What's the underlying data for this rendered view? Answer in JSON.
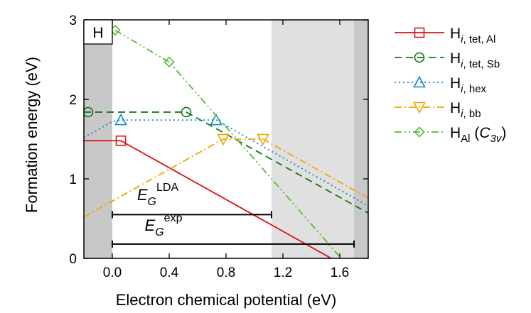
{
  "chart_data": {
    "type": "line",
    "xlabel": "Electron chemical potential (eV)",
    "ylabel": "Formation energy (eV)",
    "xlim": [
      -0.2,
      1.8
    ],
    "ylim": [
      0,
      3
    ],
    "xticks": [
      "0.0",
      "0.4",
      "0.8",
      "1.2",
      "1.6"
    ],
    "xtick_values": [
      0.0,
      0.4,
      0.8,
      1.2,
      1.6
    ],
    "yticks": [
      "0",
      "1",
      "2",
      "3"
    ],
    "ytick_values": [
      0,
      1,
      2,
      3
    ],
    "grid": false,
    "legend_placement": "outside-right",
    "panel_label": "H",
    "shaded_regions": [
      {
        "from": -0.2,
        "to": 0.0,
        "color": "#c8c8c8"
      },
      {
        "from": 1.12,
        "to": 1.7,
        "color": "#e0e0e0"
      },
      {
        "from": 1.7,
        "to": 1.8,
        "color": "#c8c8c8"
      }
    ],
    "gaps": [
      {
        "main": "E",
        "sub": "G",
        "sup": "LDA",
        "from": 0.0,
        "to": 1.12,
        "y": 0.55,
        "label_y": 0.73,
        "label_x": 0.32
      },
      {
        "main": "E",
        "sub": "G",
        "sup": "exp",
        "from": 0.0,
        "to": 1.7,
        "y": 0.18,
        "label_y": 0.35,
        "label_x": 0.36
      }
    ],
    "series": [
      {
        "name_main": "H",
        "name_sub": "i, tet, Al",
        "name_sub_italic_part": "i",
        "color": "#dd1111",
        "dash": "",
        "marker": "square",
        "x": [
          -0.2,
          0.0,
          0.06,
          1.6
        ],
        "y": [
          1.48,
          1.48,
          1.48,
          -0.06
        ],
        "marker_x": [
          0.06
        ],
        "marker_y": [
          1.48
        ]
      },
      {
        "name_main": "H",
        "name_sub": "i, tet, Sb",
        "name_sub_italic_part": "i",
        "color": "#117711",
        "dash": "10,6",
        "marker": "circle",
        "x": [
          -0.2,
          0.0,
          0.52,
          1.8
        ],
        "y": [
          1.84,
          1.84,
          1.84,
          0.57
        ],
        "marker_x": [
          -0.17,
          0.52
        ],
        "marker_y": [
          1.84,
          1.84
        ]
      },
      {
        "name_main": "H",
        "name_sub": "i, hex",
        "name_sub_italic_part": "i",
        "color": "#1188cc",
        "dash": "2,4",
        "marker": "triangle-up",
        "x": [
          -0.2,
          0.0,
          0.06,
          0.73,
          1.8
        ],
        "y": [
          1.52,
          1.72,
          1.74,
          1.74,
          0.66
        ],
        "marker_x": [
          0.06,
          0.73
        ],
        "marker_y": [
          1.74,
          1.74
        ]
      },
      {
        "name_main": "H",
        "name_sub": "i, bb",
        "name_sub_italic_part": "i",
        "color": "#f0a800",
        "dash": "10,4,2,4",
        "marker": "triangle-down",
        "x": [
          -0.2,
          0.78,
          1.06,
          1.8
        ],
        "y": [
          0.52,
          1.5,
          1.5,
          0.76
        ],
        "marker_x": [
          0.78,
          1.06
        ],
        "marker_y": [
          1.5,
          1.5
        ]
      },
      {
        "name_main": "H",
        "name_sub": "Al",
        "name_paren": "C",
        "name_paren_sub": "3v",
        "color": "#55bb33",
        "dash": "10,4,2,4,2,4",
        "marker": "diamond",
        "x": [
          0.02,
          0.4,
          1.62
        ],
        "y": [
          2.87,
          2.47,
          -0.02
        ],
        "marker_x": [
          0.02,
          0.4
        ],
        "marker_y": [
          2.87,
          2.47
        ]
      }
    ]
  }
}
